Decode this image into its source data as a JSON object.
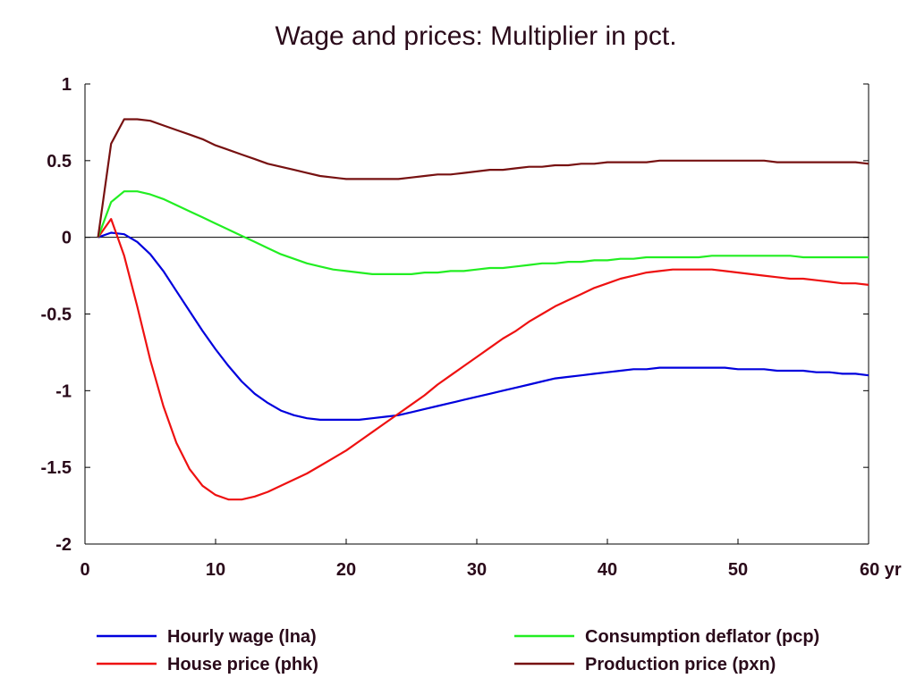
{
  "chart_data": {
    "type": "line",
    "title": "Wage and prices: Multiplier in pct.",
    "xlabel": "",
    "ylabel": "",
    "xlim": [
      0,
      60
    ],
    "ylim": [
      -2,
      1
    ],
    "x_ticks": [
      "0",
      "10",
      "20",
      "30",
      "40",
      "50",
      "60 yr"
    ],
    "x_tick_values": [
      0,
      10,
      20,
      30,
      40,
      50,
      60
    ],
    "y_ticks": [
      "1",
      "0.5",
      "0",
      "-0.5",
      "-1",
      "-1.5",
      "-2"
    ],
    "y_tick_values": [
      1,
      0.5,
      0,
      -0.5,
      -1,
      -1.5,
      -2
    ],
    "zero_line": true,
    "grid": false,
    "legend_position": "bottom",
    "x": [
      1,
      2,
      3,
      4,
      5,
      6,
      7,
      8,
      9,
      10,
      11,
      12,
      13,
      14,
      15,
      16,
      17,
      18,
      19,
      20,
      21,
      22,
      23,
      24,
      25,
      26,
      27,
      28,
      29,
      30,
      31,
      32,
      33,
      34,
      35,
      36,
      37,
      38,
      39,
      40,
      41,
      42,
      43,
      44,
      45,
      46,
      47,
      48,
      49,
      50,
      51,
      52,
      53,
      54,
      55,
      56,
      57,
      58,
      59,
      60
    ],
    "series": [
      {
        "name": "Hourly wage (lna)",
        "color": "#0000dd",
        "values": [
          0,
          0.03,
          0.02,
          -0.03,
          -0.11,
          -0.22,
          -0.35,
          -0.48,
          -0.61,
          -0.73,
          -0.84,
          -0.94,
          -1.02,
          -1.08,
          -1.13,
          -1.16,
          -1.18,
          -1.19,
          -1.19,
          -1.19,
          -1.19,
          -1.18,
          -1.17,
          -1.16,
          -1.14,
          -1.12,
          -1.1,
          -1.08,
          -1.06,
          -1.04,
          -1.02,
          -1,
          -0.98,
          -0.96,
          -0.94,
          -0.92,
          -0.91,
          -0.9,
          -0.89,
          -0.88,
          -0.87,
          -0.86,
          -0.86,
          -0.85,
          -0.85,
          -0.85,
          -0.85,
          -0.85,
          -0.85,
          -0.86,
          -0.86,
          -0.86,
          -0.87,
          -0.87,
          -0.87,
          -0.88,
          -0.88,
          -0.89,
          -0.89,
          -0.9
        ]
      },
      {
        "name": "House price (phk)",
        "color": "#ee1111",
        "values": [
          0,
          0.12,
          -0.12,
          -0.45,
          -0.8,
          -1.1,
          -1.34,
          -1.51,
          -1.62,
          -1.68,
          -1.71,
          -1.71,
          -1.69,
          -1.66,
          -1.62,
          -1.58,
          -1.54,
          -1.49,
          -1.44,
          -1.39,
          -1.33,
          -1.27,
          -1.21,
          -1.15,
          -1.09,
          -1.03,
          -0.96,
          -0.9,
          -0.84,
          -0.78,
          -0.72,
          -0.66,
          -0.61,
          -0.55,
          -0.5,
          -0.45,
          -0.41,
          -0.37,
          -0.33,
          -0.3,
          -0.27,
          -0.25,
          -0.23,
          -0.22,
          -0.21,
          -0.21,
          -0.21,
          -0.21,
          -0.22,
          -0.23,
          -0.24,
          -0.25,
          -0.26,
          -0.27,
          -0.27,
          -0.28,
          -0.29,
          -0.3,
          -0.3,
          -0.31
        ]
      },
      {
        "name": "Consumption deflator (pcp)",
        "color": "#22ee22",
        "values": [
          0,
          0.23,
          0.3,
          0.3,
          0.28,
          0.25,
          0.21,
          0.17,
          0.13,
          0.09,
          0.05,
          0.01,
          -0.03,
          -0.07,
          -0.11,
          -0.14,
          -0.17,
          -0.19,
          -0.21,
          -0.22,
          -0.23,
          -0.24,
          -0.24,
          -0.24,
          -0.24,
          -0.23,
          -0.23,
          -0.22,
          -0.22,
          -0.21,
          -0.2,
          -0.2,
          -0.19,
          -0.18,
          -0.17,
          -0.17,
          -0.16,
          -0.16,
          -0.15,
          -0.15,
          -0.14,
          -0.14,
          -0.13,
          -0.13,
          -0.13,
          -0.13,
          -0.13,
          -0.12,
          -0.12,
          -0.12,
          -0.12,
          -0.12,
          -0.12,
          -0.12,
          -0.13,
          -0.13,
          -0.13,
          -0.13,
          -0.13,
          -0.13
        ]
      },
      {
        "name": "Production price (pxn)",
        "color": "#771111",
        "values": [
          0,
          0.61,
          0.77,
          0.77,
          0.76,
          0.73,
          0.7,
          0.67,
          0.64,
          0.6,
          0.57,
          0.54,
          0.51,
          0.48,
          0.46,
          0.44,
          0.42,
          0.4,
          0.39,
          0.38,
          0.38,
          0.38,
          0.38,
          0.38,
          0.39,
          0.4,
          0.41,
          0.41,
          0.42,
          0.43,
          0.44,
          0.44,
          0.45,
          0.46,
          0.46,
          0.47,
          0.47,
          0.48,
          0.48,
          0.49,
          0.49,
          0.49,
          0.49,
          0.5,
          0.5,
          0.5,
          0.5,
          0.5,
          0.5,
          0.5,
          0.5,
          0.5,
          0.49,
          0.49,
          0.49,
          0.49,
          0.49,
          0.49,
          0.49,
          0.48
        ]
      }
    ]
  }
}
